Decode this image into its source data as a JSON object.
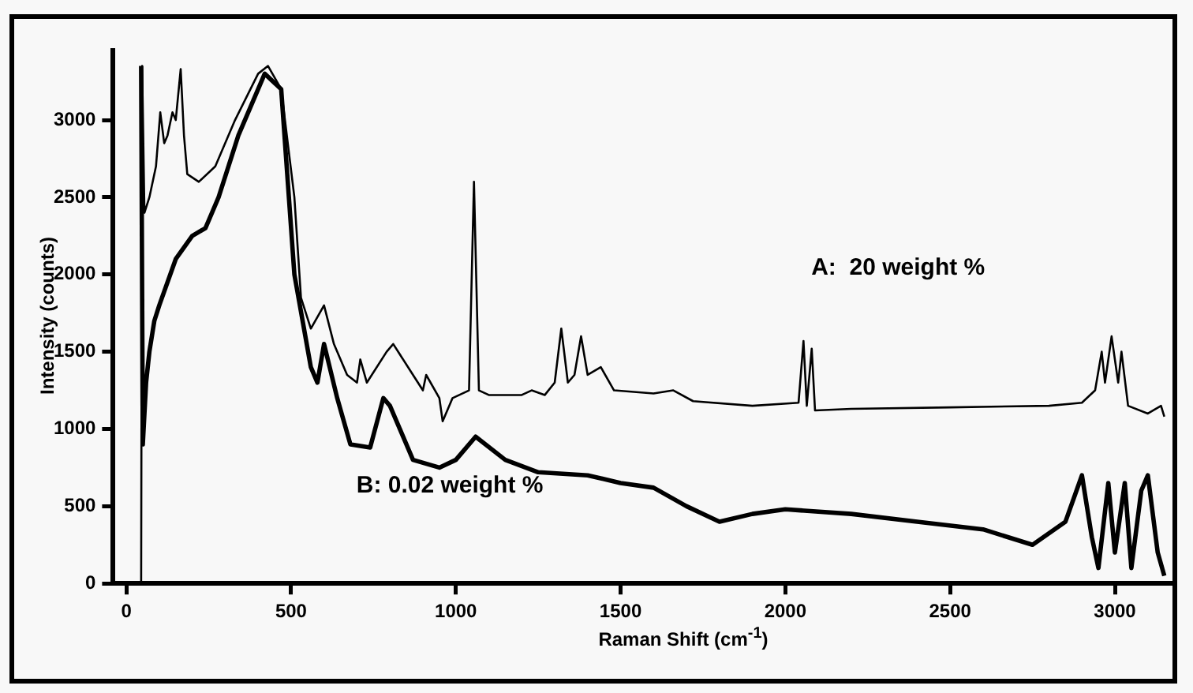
{
  "chart_data": {
    "type": "line",
    "xlabel": "Raman Shift (cm$^{-1}$)",
    "ylabel": "Intensity (counts)",
    "xlim": [
      -40,
      3170
    ],
    "ylim": [
      0,
      3450
    ],
    "xticks": [
      0,
      500,
      1000,
      1500,
      2000,
      2500,
      3000
    ],
    "yticks": [
      0,
      500,
      1000,
      1500,
      2000,
      2500,
      3000
    ],
    "grid": false,
    "legend": false,
    "marker": "none",
    "line_style": "solid",
    "series": [
      {
        "name": "A:  20 weight %",
        "color": "#000000",
        "x": [
          45,
          48,
          55,
          70,
          90,
          103,
          115,
          125,
          140,
          150,
          165,
          175,
          185,
          220,
          270,
          330,
          400,
          430,
          470,
          510,
          530,
          560,
          600,
          630,
          670,
          700,
          710,
          730,
          790,
          810,
          870,
          900,
          910,
          950,
          960,
          990,
          1040,
          1055,
          1070,
          1100,
          1200,
          1230,
          1270,
          1300,
          1320,
          1340,
          1360,
          1380,
          1400,
          1440,
          1480,
          1600,
          1660,
          1720,
          1900,
          2040,
          2055,
          2065,
          2080,
          2090,
          2200,
          2500,
          2800,
          2900,
          2940,
          2960,
          2970,
          2990,
          3010,
          3020,
          3040,
          3100,
          3140,
          3150
        ],
        "values": [
          0,
          3350,
          2400,
          2500,
          2700,
          3050,
          2850,
          2900,
          3050,
          3000,
          3330,
          2900,
          2650,
          2600,
          2700,
          3000,
          3300,
          3350,
          3200,
          2500,
          1850,
          1650,
          1800,
          1550,
          1350,
          1300,
          1450,
          1300,
          1500,
          1550,
          1350,
          1250,
          1350,
          1200,
          1050,
          1200,
          1250,
          2600,
          1250,
          1220,
          1220,
          1250,
          1220,
          1300,
          1650,
          1300,
          1350,
          1600,
          1350,
          1400,
          1250,
          1230,
          1250,
          1180,
          1150,
          1170,
          1570,
          1150,
          1520,
          1120,
          1130,
          1140,
          1150,
          1170,
          1250,
          1500,
          1300,
          1600,
          1300,
          1500,
          1150,
          1100,
          1150,
          1080
        ]
      },
      {
        "name": "B: 0.02 weight %",
        "color": "#000000",
        "x": [
          45,
          50,
          60,
          70,
          85,
          100,
          150,
          200,
          240,
          280,
          340,
          420,
          470,
          510,
          560,
          580,
          600,
          640,
          680,
          740,
          780,
          800,
          870,
          950,
          1000,
          1060,
          1150,
          1250,
          1400,
          1500,
          1600,
          1700,
          1800,
          1900,
          2000,
          2200,
          2400,
          2600,
          2750,
          2850,
          2900,
          2930,
          2950,
          2980,
          3000,
          3030,
          3050,
          3080,
          3100,
          3130,
          3150
        ],
        "values": [
          3350,
          900,
          1300,
          1500,
          1700,
          1800,
          2100,
          2250,
          2300,
          2500,
          2900,
          3300,
          3200,
          2000,
          1400,
          1300,
          1550,
          1200,
          900,
          880,
          1200,
          1150,
          800,
          750,
          800,
          950,
          800,
          720,
          700,
          650,
          620,
          500,
          400,
          450,
          480,
          450,
          400,
          350,
          250,
          400,
          700,
          300,
          100,
          650,
          200,
          650,
          100,
          600,
          700,
          200,
          50
        ]
      }
    ]
  }
}
